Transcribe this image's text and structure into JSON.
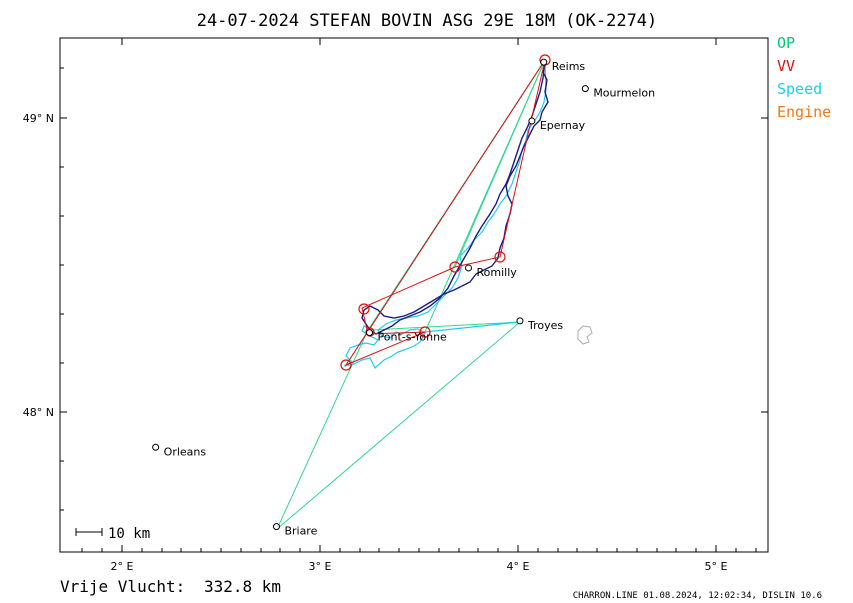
{
  "title": "24-07-2024   STEFAN BOVIN   ASG 29E 18M (OK-2274)",
  "legend": [
    {
      "label": "OP",
      "color": "#00c878"
    },
    {
      "label": "VV",
      "color": "#e01010"
    },
    {
      "label": "Speed",
      "color": "#22ccee"
    },
    {
      "label": "Engine",
      "color": "#f07818"
    }
  ],
  "axes": {
    "x_ticks": [
      "2° E",
      "3° E",
      "4° E",
      "5° E"
    ],
    "y_ticks": [
      "49° N",
      "48° N"
    ]
  },
  "places": [
    {
      "name": "Reims",
      "lon": 4.13,
      "lat": 49.19
    },
    {
      "name": "Mourmelon",
      "lon": 4.34,
      "lat": 49.1
    },
    {
      "name": "Epernay",
      "lon": 4.07,
      "lat": 48.99
    },
    {
      "name": "Romilly",
      "lon": 3.75,
      "lat": 48.49
    },
    {
      "name": "Pont-s-Yonne",
      "lon": 3.25,
      "lat": 48.27
    },
    {
      "name": "Troyes",
      "lon": 4.01,
      "lat": 48.31
    },
    {
      "name": "Orleans",
      "lon": 2.17,
      "lat": 47.88
    },
    {
      "name": "Briare",
      "lon": 2.78,
      "lat": 47.61
    }
  ],
  "scale_label": "10 km",
  "free_flight_label": "Vrije Vlucht:",
  "free_flight_value": "332.8 km",
  "footer": "CHARRON.LINE 01.08.2024, 12:02:34, DISLIN 10.6"
}
